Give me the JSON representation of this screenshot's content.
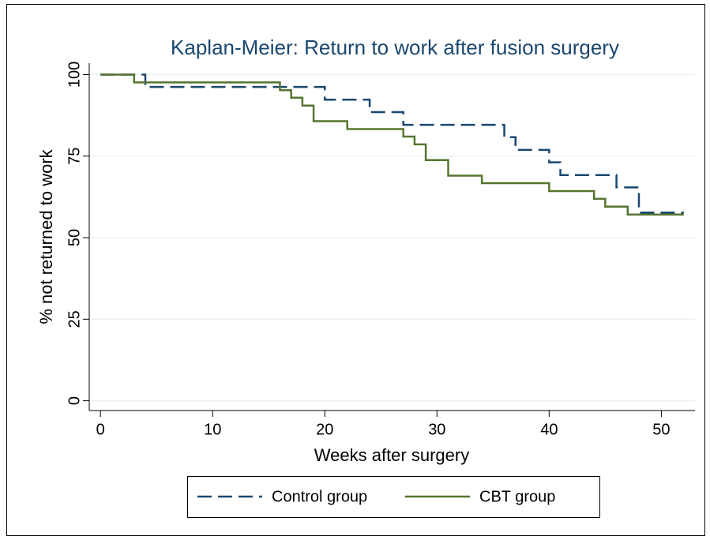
{
  "chart_data": {
    "type": "step",
    "title": "Kaplan-Meier: Return to work after fusion surgery",
    "x_label": "Weeks after surgery",
    "y_label": "% not returned to work",
    "xlim": [
      -1,
      53
    ],
    "xticks": [
      0,
      10,
      20,
      30,
      40,
      50
    ],
    "ylim": [
      -3,
      103.5
    ],
    "yticks": [
      0,
      25,
      50,
      75,
      100
    ],
    "grid": true,
    "series": [
      {
        "name": "Control group",
        "color": "#1a476f",
        "line_style": "dashed",
        "x": [
          0,
          4,
          20,
          24,
          27,
          36,
          37,
          40,
          41,
          46,
          48,
          52
        ],
        "values": [
          100,
          96.2,
          92.3,
          88.5,
          84.6,
          80.8,
          76.9,
          73.1,
          69.2,
          65.4,
          57.7,
          57.7
        ]
      },
      {
        "name": "CBT group",
        "color": "#55752f",
        "line_style": "solid",
        "x": [
          0,
          3,
          16,
          17,
          18,
          19,
          22,
          27,
          28,
          29,
          31,
          34,
          40,
          44,
          45,
          47,
          52
        ],
        "values": [
          100,
          97.6,
          95.2,
          92.9,
          90.5,
          85.7,
          83.3,
          81,
          78.6,
          73.8,
          69,
          66.7,
          64.3,
          61.9,
          59.5,
          57.1,
          57.1
        ]
      }
    ]
  }
}
